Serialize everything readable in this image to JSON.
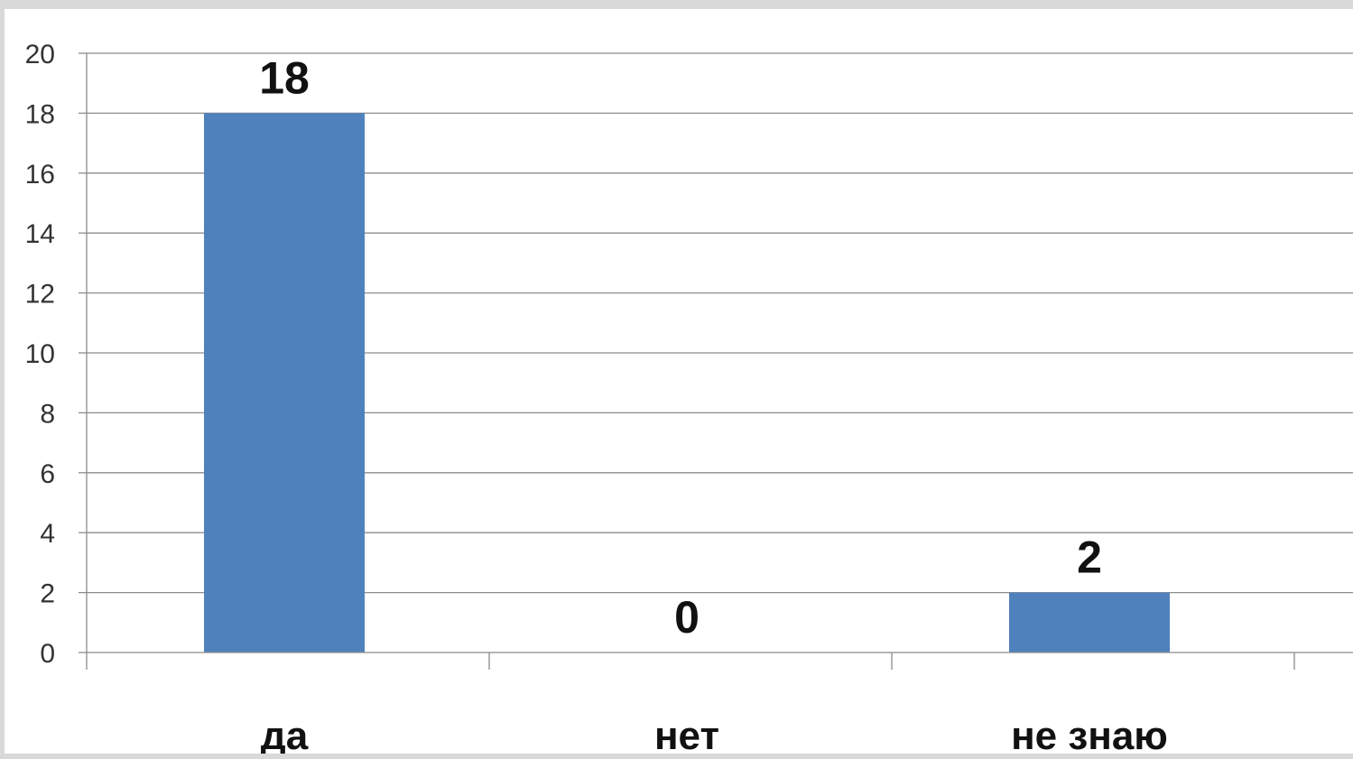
{
  "chart_data": {
    "type": "bar",
    "categories": [
      "да",
      "нет",
      "не знаю"
    ],
    "values": [
      18,
      0,
      2
    ],
    "data_labels": [
      "18",
      "0",
      "2"
    ],
    "title": "",
    "xlabel": "",
    "ylabel": "",
    "ylim": [
      0,
      20
    ],
    "y_ticks": [
      0,
      2,
      4,
      6,
      8,
      10,
      12,
      14,
      16,
      18,
      20
    ],
    "grid": true,
    "legend": "none",
    "bar_color": "#4f81bd"
  }
}
